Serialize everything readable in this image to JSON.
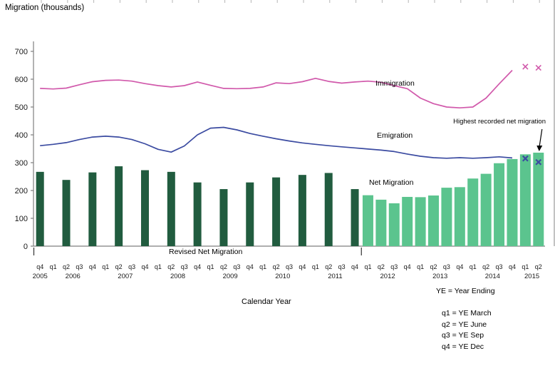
{
  "labels": {
    "x_axis": "Calendar Year"
  },
  "legend": {
    "heading": "YE = Year Ending",
    "items": [
      "q1 = YE March",
      "q2 = YE June",
      "q3 = YE Sep",
      "q4 = YE Dec"
    ]
  },
  "colors": {
    "immigration": "#d159ab",
    "emigration": "#3b4ba1",
    "revised_net_bar": "#215c3f",
    "net_bar": "#5bc48e",
    "axis": "#7f7f7f",
    "text": "#1a1a1a",
    "annotation": "#000000"
  },
  "chart_data": {
    "type": "combo",
    "unit": "thousands",
    "y_axis": {
      "label": "Migration (thousands)",
      "ticks": [
        0,
        100,
        200,
        300,
        400,
        500,
        600,
        700
      ],
      "range": [
        0,
        700
      ]
    },
    "x_quarters": [
      "q4",
      "q1",
      "q2",
      "q3",
      "q4",
      "q1",
      "q2",
      "q3",
      "q4",
      "q1",
      "q2",
      "q3",
      "q4",
      "q1",
      "q2",
      "q3",
      "q4",
      "q1",
      "q2",
      "q3",
      "q4",
      "q1",
      "q2",
      "q3",
      "q4",
      "q1",
      "q2",
      "q3",
      "q4",
      "q1",
      "q2",
      "q3",
      "q4",
      "q1",
      "q2",
      "q3",
      "q4",
      "q1",
      "q2"
    ],
    "x_years": [
      {
        "label": "2005",
        "start": 0,
        "end": 0
      },
      {
        "label": "2006",
        "start": 1,
        "end": 4
      },
      {
        "label": "2007",
        "start": 5,
        "end": 8
      },
      {
        "label": "2008",
        "start": 9,
        "end": 12
      },
      {
        "label": "2009",
        "start": 13,
        "end": 16
      },
      {
        "label": "2010",
        "start": 17,
        "end": 20
      },
      {
        "label": "2011",
        "start": 21,
        "end": 24
      },
      {
        "label": "2012",
        "start": 25,
        "end": 28
      },
      {
        "label": "2013",
        "start": 29,
        "end": 32
      },
      {
        "label": "2014",
        "start": 33,
        "end": 36
      },
      {
        "label": "2015",
        "start": 37,
        "end": 38
      }
    ],
    "series": [
      {
        "id": "immigration",
        "name": "Immigration",
        "type": "line",
        "color": "#d159ab",
        "values": [
          567,
          565,
          568,
          580,
          591,
          596,
          597,
          593,
          584,
          577,
          572,
          577,
          590,
          578,
          567,
          566,
          567,
          572,
          587,
          584,
          591,
          603,
          592,
          586,
          590,
          593,
          589,
          577,
          566,
          532,
          512,
          500,
          497,
          500,
          532,
          583,
          632
        ],
        "provisional_markers": [
          {
            "index": 37,
            "value": 645
          },
          {
            "index": 38,
            "value": 641
          }
        ]
      },
      {
        "id": "emigration",
        "name": "Emigration",
        "type": "line",
        "color": "#3b4ba1",
        "values": [
          361,
          366,
          372,
          383,
          392,
          395,
          392,
          383,
          368,
          348,
          338,
          360,
          400,
          424,
          427,
          418,
          405,
          395,
          386,
          378,
          371,
          366,
          361,
          357,
          353,
          349,
          345,
          340,
          331,
          323,
          318,
          316,
          318,
          316,
          318,
          321,
          317
        ],
        "provisional_markers": [
          {
            "index": 37,
            "value": 315
          },
          {
            "index": 38,
            "value": 302
          }
        ]
      },
      {
        "id": "revised_net",
        "name": "Revised Net Migration",
        "type": "bar",
        "color": "#215c3f",
        "indices": [
          0,
          2,
          4,
          6,
          8,
          10,
          12,
          14,
          16,
          18,
          20,
          22,
          24
        ],
        "values": [
          267,
          238,
          265,
          287,
          273,
          267,
          229,
          205,
          229,
          247,
          256,
          263,
          205
        ]
      },
      {
        "id": "net",
        "name": "Net Migration",
        "type": "bar",
        "color": "#5bc48e",
        "indices": [
          25,
          26,
          27,
          28,
          29,
          30,
          31,
          32,
          33,
          34,
          35,
          36,
          37,
          38
        ],
        "values": [
          183,
          167,
          154,
          177,
          176,
          182,
          210,
          212,
          243,
          260,
          298,
          313,
          330,
          336
        ]
      }
    ],
    "annotation": {
      "text": "Highest recorded net migration",
      "target_index": 38,
      "target_value": 336
    }
  }
}
